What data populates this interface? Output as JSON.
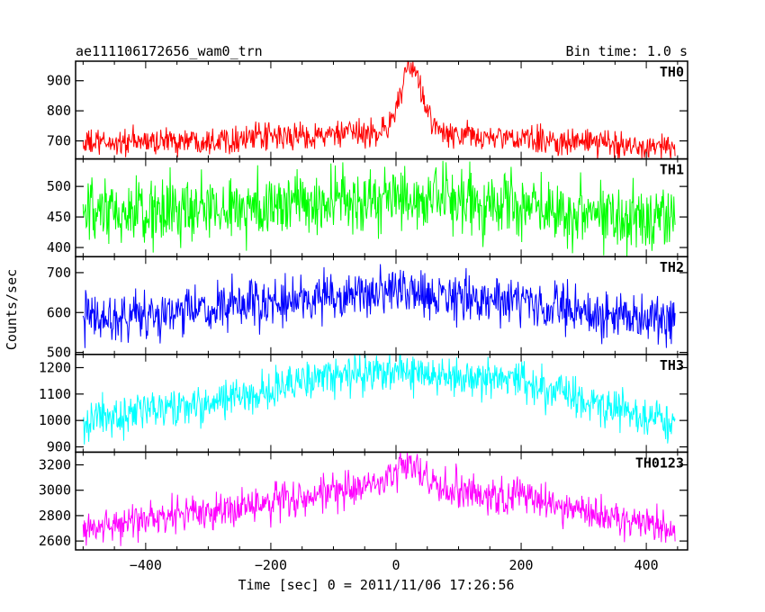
{
  "header": {
    "title": "ae111106172656_wam0_trn",
    "bin_time": "Bin time: 1.0 s"
  },
  "axes": {
    "ylabel": "Counts/sec",
    "xlabel": "Time [sec] 0 = 2011/11/06 17:26:56",
    "x_ticks": [
      "−400",
      "−200",
      "0",
      "200",
      "400"
    ]
  },
  "chart_data": [
    {
      "type": "line",
      "panel": "TH0",
      "color": "#ff0000",
      "x_range": [
        -500,
        446
      ],
      "ylim": [
        640,
        965
      ],
      "y_ticks": [
        700,
        800,
        900
      ],
      "baseline": [
        [
          -500,
          690
        ],
        [
          -100,
          720
        ],
        [
          0,
          730
        ],
        [
          200,
          705
        ],
        [
          446,
          680
        ]
      ],
      "noise_amplitude": 45,
      "burst": {
        "peak_time": 25,
        "peak_value": 960,
        "width_sec": 18
      }
    },
    {
      "type": "line",
      "panel": "TH1",
      "color": "#00ff00",
      "x_range": [
        -500,
        446
      ],
      "ylim": [
        385,
        545
      ],
      "y_ticks": [
        400,
        450,
        500
      ],
      "baseline": [
        [
          -500,
          450
        ],
        [
          -100,
          475
        ],
        [
          0,
          478
        ],
        [
          200,
          470
        ],
        [
          446,
          445
        ]
      ],
      "noise_amplitude": 55,
      "burst": null
    },
    {
      "type": "line",
      "panel": "TH2",
      "color": "#0000ff",
      "x_range": [
        -500,
        446
      ],
      "ylim": [
        495,
        740
      ],
      "y_ticks": [
        500,
        600,
        700
      ],
      "baseline": [
        [
          -500,
          585
        ],
        [
          -300,
          605
        ],
        [
          -100,
          640
        ],
        [
          0,
          650
        ],
        [
          200,
          625
        ],
        [
          446,
          570
        ]
      ],
      "noise_amplitude": 60,
      "burst": null
    },
    {
      "type": "line",
      "panel": "TH3",
      "color": "#00ffff",
      "x_range": [
        -500,
        446
      ],
      "ylim": [
        880,
        1250
      ],
      "y_ticks": [
        900,
        1000,
        1100,
        1200
      ],
      "baseline": [
        [
          -500,
          1000
        ],
        [
          -300,
          1060
        ],
        [
          -150,
          1150
        ],
        [
          0,
          1190
        ],
        [
          200,
          1140
        ],
        [
          446,
          990
        ]
      ],
      "noise_amplitude": 75,
      "burst": null
    },
    {
      "type": "line",
      "panel": "TH0123",
      "color": "#ff00ff",
      "x_range": [
        -500,
        446
      ],
      "ylim": [
        2530,
        3300
      ],
      "y_ticks": [
        2600,
        2800,
        3000,
        3200
      ],
      "baseline": [
        [
          -500,
          2700
        ],
        [
          -300,
          2830
        ],
        [
          -100,
          2980
        ],
        [
          0,
          3050
        ],
        [
          200,
          2950
        ],
        [
          446,
          2680
        ]
      ],
      "noise_amplitude": 150,
      "burst": {
        "peak_time": 20,
        "peak_value": 3280,
        "width_sec": 20
      }
    }
  ]
}
